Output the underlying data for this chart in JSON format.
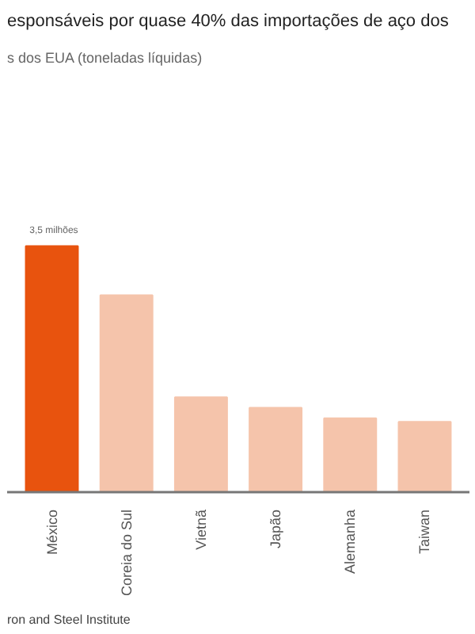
{
  "chart_data": {
    "type": "bar",
    "title": "esponsáveis por quase 40% das importações de aço dos",
    "subtitle": "s dos EUA (toneladas líquidas)",
    "categories": [
      "México",
      "Coreia do Sul",
      "Vietnã",
      "Japão",
      "Alemanha",
      "Taiwan"
    ],
    "values": [
      3.5,
      2.8,
      1.35,
      1.2,
      1.05,
      1.0
    ],
    "colors": [
      "#e8530e",
      "#f5c4ab",
      "#f5c4ab",
      "#f5c4ab",
      "#f5c4ab",
      "#f5c4ab"
    ],
    "value_labels": [
      "3,5 milhões",
      null,
      null,
      null,
      null,
      null
    ],
    "tick_labels": "x",
    "annotations": [
      "ron and Steel Institute"
    ]
  }
}
